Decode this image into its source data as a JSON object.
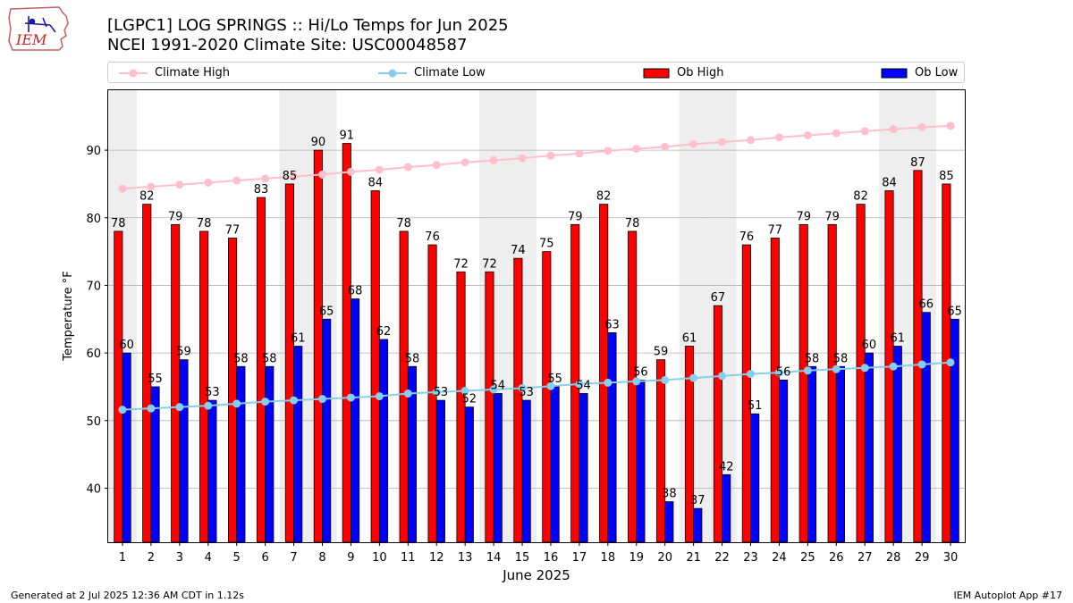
{
  "header": {
    "title_line1": "[LGPC1] LOG SPRINGS :: Hi/Lo Temps for Jun 2025",
    "title_line2": "NCEI 1991-2020 Climate Site: USC00048587"
  },
  "logo": {
    "text": "IEM"
  },
  "footer": {
    "left": "Generated at 2 Jul 2025 12:36 AM CDT in 1.12s",
    "right": "IEM Autoplot App #17"
  },
  "colors": {
    "ob_high": "#ff0000",
    "ob_low": "#0000ff",
    "climate_high": "#ffc0cb",
    "climate_low": "#87ceeb",
    "weekend_band": "#eeeeee",
    "grid": "#b0b0b0"
  },
  "chart_data": {
    "type": "bar",
    "xlabel": "June 2025",
    "ylabel": "Temperature °F",
    "ylim": [
      32,
      99
    ],
    "yticks": [
      40,
      50,
      60,
      70,
      80,
      90
    ],
    "grid": "horizontal",
    "legend_position": "top",
    "categories": [
      "1",
      "2",
      "3",
      "4",
      "5",
      "6",
      "7",
      "8",
      "9",
      "10",
      "11",
      "12",
      "13",
      "14",
      "15",
      "16",
      "17",
      "18",
      "19",
      "20",
      "21",
      "22",
      "23",
      "24",
      "25",
      "26",
      "27",
      "28",
      "29",
      "30"
    ],
    "weekend_days": [
      1,
      7,
      8,
      14,
      15,
      21,
      22,
      28,
      29
    ],
    "series": [
      {
        "name": "Ob High",
        "kind": "bar",
        "values": [
          78,
          82,
          79,
          78,
          77,
          83,
          85,
          90,
          91,
          84,
          78,
          76,
          72,
          72,
          74,
          75,
          79,
          82,
          78,
          59,
          61,
          67,
          76,
          77,
          79,
          79,
          82,
          84,
          87,
          85
        ]
      },
      {
        "name": "Ob Low",
        "kind": "bar",
        "values": [
          60,
          55,
          59,
          53,
          58,
          58,
          61,
          65,
          68,
          62,
          58,
          53,
          52,
          54,
          53,
          55,
          54,
          63,
          56,
          38,
          37,
          42,
          51,
          56,
          58,
          58,
          60,
          61,
          66,
          65
        ]
      },
      {
        "name": "Climate High",
        "kind": "line",
        "values": [
          84.3,
          84.6,
          84.9,
          85.2,
          85.5,
          85.8,
          86.1,
          86.4,
          86.8,
          87.1,
          87.5,
          87.8,
          88.2,
          88.5,
          88.8,
          89.2,
          89.5,
          89.9,
          90.2,
          90.5,
          90.9,
          91.2,
          91.5,
          91.9,
          92.2,
          92.5,
          92.8,
          93.1,
          93.4,
          93.6
        ]
      },
      {
        "name": "Climate Low",
        "kind": "line",
        "values": [
          51.6,
          51.8,
          52.0,
          52.2,
          52.5,
          52.8,
          53.0,
          53.2,
          53.4,
          53.6,
          54.0,
          54.2,
          54.4,
          54.6,
          54.8,
          55.1,
          55.4,
          55.6,
          55.8,
          56.0,
          56.3,
          56.6,
          56.9,
          57.1,
          57.4,
          57.6,
          57.8,
          58.0,
          58.3,
          58.6
        ]
      }
    ]
  }
}
